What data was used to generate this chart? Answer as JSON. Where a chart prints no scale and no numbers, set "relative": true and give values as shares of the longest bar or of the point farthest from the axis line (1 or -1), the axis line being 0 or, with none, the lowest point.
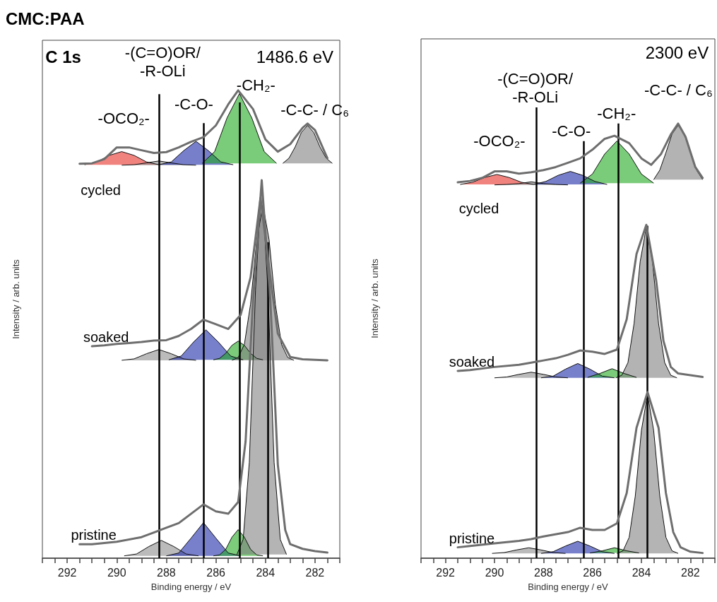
{
  "chart_data": [
    {
      "type": "line",
      "title": "CMC:PAA",
      "xlabel": "Binding energy / eV",
      "ylabel": "Intensity / arb. units",
      "relative": true,
      "xlim": [
        293,
        281
      ],
      "xticks": [
        {
          "value": 293,
          "label": null
        },
        {
          "value": 292.5,
          "label": null
        },
        292,
        {
          "value": 291.5,
          "label": null
        },
        {
          "value": 291,
          "label": null
        },
        {
          "value": 290.5,
          "label": null
        },
        290,
        {
          "value": 289.5,
          "label": null
        },
        {
          "value": 289,
          "label": null
        },
        {
          "value": 288.5,
          "label": null
        },
        288,
        {
          "value": 287.5,
          "label": null
        },
        {
          "value": 287,
          "label": null
        },
        {
          "value": 286.5,
          "label": null
        },
        286,
        {
          "value": 285.5,
          "label": null
        },
        {
          "value": 285,
          "label": null
        },
        {
          "value": 284.5,
          "label": null
        },
        284,
        {
          "value": 283.5,
          "label": null
        },
        {
          "value": 283,
          "label": null
        },
        {
          "value": 282.5,
          "label": null
        },
        282,
        {
          "value": 281.5,
          "label": null
        },
        {
          "value": 281,
          "label": null
        }
      ],
      "annotations": [
        "C 1s",
        "1486.6 eV",
        "-OCO₂-",
        "-(C=O)OR/\n-R-OLi",
        "-C-O-",
        "-CH₂-",
        "-C-C- / C₆"
      ],
      "ref_lines": [
        {
          "axis": "x",
          "value": 288.3,
          "color": "#000000"
        },
        {
          "axis": "x",
          "value": 286.5,
          "color": "#000000"
        },
        {
          "axis": "x",
          "value": 285.05,
          "color": "#000000"
        },
        {
          "axis": "x",
          "value": 283.9,
          "color": "#000000"
        }
      ],
      "series": [
        {
          "type": "area",
          "color": "#e8302a",
          "x": [
            291.3,
            290.8,
            290.3,
            289.8,
            289.3,
            288.8,
            288.3
          ],
          "values": [
            0.841,
            0.847,
            0.861,
            0.869,
            0.861,
            0.847,
            0.841
          ]
        },
        {
          "type": "area",
          "color": "#8c8c8c",
          "x": [
            289.8,
            289.3,
            288.8,
            288.3,
            287.8,
            287.3,
            286.8
          ],
          "values": [
            0.84,
            0.841,
            0.845,
            0.849,
            0.845,
            0.841,
            0.84
          ]
        },
        {
          "type": "area",
          "color": "#1c2aa8",
          "x": [
            288.3,
            287.8,
            287.3,
            286.8,
            286.3,
            285.8,
            285.3
          ],
          "values": [
            0.841,
            0.847,
            0.871,
            0.891,
            0.871,
            0.847,
            0.841
          ]
        },
        {
          "type": "area",
          "color": "#22a822",
          "x": [
            286.55,
            286.05,
            285.55,
            285.05,
            284.55,
            284.05,
            283.55
          ],
          "values": [
            0.844,
            0.869,
            0.941,
            0.993,
            0.941,
            0.869,
            0.844
          ]
        },
        {
          "type": "area",
          "color": "#808080",
          "x": [
            283.3,
            283.05,
            282.8,
            282.55,
            282.3,
            282.05,
            281.8,
            281.55,
            281.3
          ],
          "values": [
            0.844,
            0.855,
            0.879,
            0.91,
            0.925,
            0.91,
            0.879,
            0.855,
            0.844
          ]
        },
        {
          "name": "cycled",
          "type": "line",
          "color": "#6e6e6e",
          "x": [
            291.5,
            291,
            290.5,
            290,
            289.5,
            289,
            288.5,
            288,
            287.5,
            287,
            286.5,
            286,
            285.5,
            285.1,
            284.5,
            284,
            283.5,
            283,
            282.5,
            282.3,
            282,
            281.5
          ],
          "values": [
            0.843,
            0.844,
            0.853,
            0.878,
            0.878,
            0.872,
            0.866,
            0.868,
            0.878,
            0.89,
            0.9,
            0.925,
            0.97,
            1.0,
            0.96,
            0.895,
            0.869,
            0.885,
            0.92,
            0.929,
            0.915,
            0.855
          ]
        },
        {
          "type": "area",
          "color": "#8d8d8d",
          "x": [
            289.8,
            289.3,
            288.8,
            288.3,
            287.8,
            287.3,
            286.8
          ],
          "values": [
            0.423,
            0.426,
            0.437,
            0.446,
            0.437,
            0.426,
            0.423
          ]
        },
        {
          "type": "area",
          "color": "#1d2ba9",
          "x": [
            287.9,
            287.4,
            286.9,
            286.4,
            285.9,
            285.4,
            284.9
          ],
          "values": [
            0.424,
            0.432,
            0.462,
            0.488,
            0.462,
            0.432,
            0.424
          ]
        },
        {
          "type": "area",
          "color": "#23a923",
          "x": [
            286.1,
            285.85,
            285.6,
            285.35,
            285.1,
            284.85,
            284.6,
            284.35,
            284.1
          ],
          "values": [
            0.424,
            0.427,
            0.438,
            0.455,
            0.464,
            0.455,
            0.438,
            0.427,
            0.424
          ]
        },
        {
          "type": "area",
          "color": "#818181",
          "x": [
            285.35,
            285.1,
            284.85,
            284.6,
            284.35,
            284.1,
            283.85,
            283.6,
            283.35,
            283.1,
            282.85
          ],
          "values": [
            0.423,
            0.429,
            0.457,
            0.543,
            0.68,
            0.755,
            0.68,
            0.543,
            0.457,
            0.429,
            0.423
          ]
        },
        {
          "name": "soaked",
          "type": "line",
          "color": "#6e6e6e",
          "x": [
            291,
            290.5,
            290,
            289.5,
            289,
            288.5,
            288,
            287.5,
            287,
            286.5,
            286,
            285.5,
            285,
            284.6,
            284.2,
            283.8,
            283.5,
            283,
            282.5,
            281.5
          ],
          "values": [
            0.453,
            0.455,
            0.458,
            0.46,
            0.462,
            0.465,
            0.466,
            0.475,
            0.49,
            0.51,
            0.5,
            0.49,
            0.52,
            0.6,
            0.77,
            0.6,
            0.48,
            0.43,
            0.425,
            0.423
          ]
        },
        {
          "type": "area",
          "color": "#8e8e8e",
          "x": [
            289.7,
            289.2,
            288.7,
            288.2,
            287.7,
            287.2,
            286.7
          ],
          "values": [
            0.005,
            0.009,
            0.025,
            0.038,
            0.025,
            0.009,
            0.005
          ]
        },
        {
          "type": "area",
          "color": "#1e2caa",
          "x": [
            288,
            287.5,
            287,
            286.5,
            286,
            285.5,
            285
          ],
          "values": [
            0.005,
            0.011,
            0.043,
            0.076,
            0.043,
            0.011,
            0.005
          ]
        },
        {
          "type": "area",
          "color": "#24aa24",
          "x": [
            286.1,
            285.85,
            285.6,
            285.35,
            285.1,
            284.85,
            284.6,
            284.35,
            284.1
          ],
          "values": [
            0.005,
            0.007,
            0.019,
            0.045,
            0.061,
            0.045,
            0.019,
            0.007,
            0.005
          ]
        },
        {
          "type": "area",
          "color": "#828282",
          "x": [
            285.15,
            284.9,
            284.65,
            284.4,
            284.15,
            283.9,
            283.65,
            283.4,
            283.15
          ],
          "values": [
            0.008,
            0.04,
            0.205,
            0.573,
            0.809,
            0.573,
            0.205,
            0.04,
            0.008
          ]
        },
        {
          "name": "pristine",
          "type": "line",
          "color": "#6e6e6e",
          "x": [
            291.5,
            291,
            290,
            289,
            288.5,
            288,
            287.5,
            287,
            286.5,
            286,
            285.5,
            285.1,
            284.8,
            284.5,
            284.15,
            283.8,
            283.5,
            283.2,
            283,
            282.5,
            282,
            281.5
          ],
          "values": [
            0.03,
            0.03,
            0.035,
            0.045,
            0.055,
            0.065,
            0.075,
            0.095,
            0.115,
            0.1,
            0.095,
            0.12,
            0.25,
            0.55,
            0.808,
            0.55,
            0.2,
            0.06,
            0.03,
            0.02,
            0.015,
            0.012
          ]
        }
      ]
    },
    {
      "type": "line",
      "xlabel": "Binding energy / eV",
      "ylabel": "Intensity / arb. units",
      "relative": true,
      "xlim": [
        293,
        281
      ],
      "xticks": [
        {
          "value": 293,
          "label": null
        },
        {
          "value": 292.5,
          "label": null
        },
        292,
        {
          "value": 291.5,
          "label": null
        },
        {
          "value": 291,
          "label": null
        },
        {
          "value": 290.5,
          "label": null
        },
        290,
        {
          "value": 289.5,
          "label": null
        },
        {
          "value": 289,
          "label": null
        },
        {
          "value": 288.5,
          "label": null
        },
        288,
        {
          "value": 287.5,
          "label": null
        },
        {
          "value": 287,
          "label": null
        },
        {
          "value": 286.5,
          "label": null
        },
        286,
        {
          "value": 285.5,
          "label": null
        },
        {
          "value": 285,
          "label": null
        },
        {
          "value": 284.5,
          "label": null
        },
        284,
        {
          "value": 283.5,
          "label": null
        },
        {
          "value": 283,
          "label": null
        },
        {
          "value": 282.5,
          "label": null
        },
        282,
        {
          "value": 281.5,
          "label": null
        },
        {
          "value": 281,
          "label": null
        }
      ],
      "annotations": [
        "2300 eV",
        "-OCO₂-",
        "-(C=O)OR/\n-R-OLi",
        "-C-O-",
        "-CH₂-",
        "-C-C- / C₆"
      ],
      "ref_lines": [
        {
          "axis": "x",
          "value": 288.3,
          "color": "#000000"
        },
        {
          "axis": "x",
          "value": 286.35,
          "color": "#000000"
        },
        {
          "axis": "x",
          "value": 284.95,
          "color": "#000000"
        },
        {
          "axis": "x",
          "value": 283.75,
          "color": "#000000"
        }
      ],
      "series": [
        {
          "type": "area",
          "color": "#e8302a",
          "x": [
            291.4,
            290.9,
            290.4,
            289.9,
            289.4,
            288.9,
            288.4
          ],
          "values": [
            0.86,
            0.865,
            0.876,
            0.883,
            0.876,
            0.865,
            0.86
          ]
        },
        {
          "type": "area",
          "color": "#8c8c8c",
          "x": [
            290,
            289.5,
            289,
            288.5,
            288,
            287.5,
            287
          ],
          "values": [
            0.859,
            0.86,
            0.862,
            0.866,
            0.862,
            0.86,
            0.859
          ]
        },
        {
          "type": "area",
          "color": "#1c2aa8",
          "x": [
            288.4,
            287.9,
            287.4,
            286.9,
            286.4,
            285.9,
            285.4
          ],
          "values": [
            0.86,
            0.867,
            0.881,
            0.89,
            0.881,
            0.867,
            0.86
          ]
        },
        {
          "type": "area",
          "color": "#22a822",
          "x": [
            286.5,
            286,
            285.5,
            285,
            284.5,
            284,
            283.5
          ],
          "values": [
            0.863,
            0.884,
            0.93,
            0.96,
            0.93,
            0.884,
            0.863
          ]
        },
        {
          "type": "area",
          "color": "#808080",
          "x": [
            283.5,
            283.25,
            283,
            282.75,
            282.5,
            282.25,
            282,
            281.75,
            281.5
          ],
          "values": [
            0.871,
            0.893,
            0.933,
            0.976,
            0.996,
            0.976,
            0.933,
            0.893,
            0.871
          ]
        },
        {
          "name": "cycled",
          "type": "line",
          "color": "#6e6e6e",
          "x": [
            291.5,
            291,
            290.5,
            290,
            289.5,
            289,
            288.5,
            288,
            287.5,
            287,
            286.5,
            286,
            285.5,
            285.1,
            284.5,
            284,
            283.6,
            283.2,
            282.8,
            282.5,
            282.2,
            281.8,
            281.5
          ],
          "values": [
            0.865,
            0.868,
            0.875,
            0.89,
            0.89,
            0.885,
            0.888,
            0.893,
            0.9,
            0.91,
            0.92,
            0.94,
            0.965,
            0.972,
            0.955,
            0.92,
            0.905,
            0.93,
            0.975,
            1.0,
            0.97,
            0.9,
            0.875
          ]
        },
        {
          "type": "area",
          "color": "#8d8d8d",
          "x": [
            290,
            289.5,
            289,
            288.5,
            288,
            287.5,
            287
          ],
          "values": [
            0.415,
            0.417,
            0.423,
            0.428,
            0.423,
            0.417,
            0.415
          ]
        },
        {
          "type": "area",
          "color": "#1d2ba9",
          "x": [
            288.1,
            287.6,
            287.1,
            286.6,
            286.1,
            285.6,
            285.1
          ],
          "values": [
            0.415,
            0.419,
            0.435,
            0.448,
            0.435,
            0.419,
            0.415
          ]
        },
        {
          "type": "area",
          "color": "#23a923",
          "x": [
            286.2,
            285.7,
            285.2,
            284.7,
            284.2
          ],
          "values": [
            0.416,
            0.425,
            0.436,
            0.425,
            0.416
          ]
        },
        {
          "type": "area",
          "color": "#818181",
          "x": [
            285.05,
            284.8,
            284.55,
            284.3,
            284.05,
            283.8,
            283.55,
            283.3,
            283.05,
            282.8,
            282.55
          ],
          "values": [
            0.415,
            0.421,
            0.45,
            0.54,
            0.683,
            0.761,
            0.683,
            0.54,
            0.45,
            0.421,
            0.415
          ]
        },
        {
          "name": "soaked",
          "type": "line",
          "color": "#6e6e6e",
          "x": [
            291.5,
            291,
            290,
            289,
            288.5,
            288,
            287.5,
            287,
            286.5,
            286,
            285.5,
            285,
            284.6,
            284.2,
            283.8,
            283.4,
            283.1,
            282.8,
            282.5,
            281.5
          ],
          "values": [
            0.431,
            0.433,
            0.44,
            0.445,
            0.45,
            0.455,
            0.46,
            0.468,
            0.478,
            0.475,
            0.47,
            0.48,
            0.55,
            0.7,
            0.767,
            0.64,
            0.5,
            0.44,
            0.425,
            0.417
          ]
        },
        {
          "type": "area",
          "color": "#8e8e8e",
          "x": [
            290.1,
            289.6,
            289.1,
            288.6,
            288.1,
            287.6,
            287.1
          ],
          "values": [
            0.011,
            0.013,
            0.019,
            0.024,
            0.019,
            0.013,
            0.011
          ]
        },
        {
          "type": "area",
          "color": "#1e2caa",
          "x": [
            288.1,
            287.6,
            287.1,
            286.6,
            286.1,
            285.6,
            285.1
          ],
          "values": [
            0.011,
            0.015,
            0.028,
            0.039,
            0.028,
            0.015,
            0.011
          ]
        },
        {
          "type": "area",
          "color": "#24aa24",
          "x": [
            286.1,
            285.6,
            285.1,
            284.6,
            284.1
          ],
          "values": [
            0.012,
            0.017,
            0.024,
            0.017,
            0.012
          ]
        },
        {
          "type": "area",
          "color": "#828282",
          "x": [
            285,
            284.75,
            284.5,
            284.25,
            284,
            283.75,
            283.5,
            283.25,
            283,
            282.75,
            282.5
          ],
          "values": [
            0.011,
            0.017,
            0.048,
            0.143,
            0.294,
            0.377,
            0.294,
            0.143,
            0.048,
            0.017,
            0.011
          ]
        },
        {
          "name": "pristine",
          "type": "line",
          "color": "#6e6e6e",
          "x": [
            291.5,
            291,
            290,
            289,
            288.5,
            288,
            287,
            286.5,
            286,
            285.5,
            285,
            284.6,
            284.2,
            283.75,
            283.3,
            283,
            282.7,
            282.4,
            282,
            281.5
          ],
          "values": [
            0.025,
            0.028,
            0.034,
            0.04,
            0.044,
            0.05,
            0.06,
            0.07,
            0.065,
            0.065,
            0.08,
            0.15,
            0.3,
            0.382,
            0.3,
            0.15,
            0.06,
            0.025,
            0.015,
            0.012
          ]
        }
      ]
    }
  ]
}
